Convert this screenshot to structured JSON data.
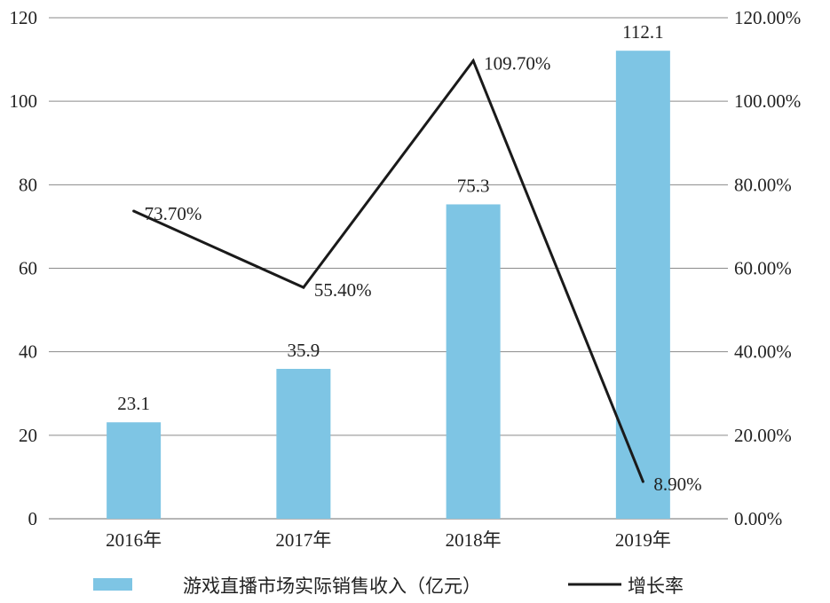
{
  "chart_data": {
    "type": "bar",
    "categories": [
      "2016年",
      "2017年",
      "2018年",
      "2019年"
    ],
    "series": [
      {
        "name": "游戏直播市场实际销售收入（亿元）",
        "type": "bar",
        "axis": "left",
        "values": [
          23.1,
          35.9,
          75.3,
          112.1
        ],
        "labels": [
          "23.1",
          "35.9",
          "75.3",
          "112.1"
        ]
      },
      {
        "name": "增长率",
        "type": "line",
        "axis": "right",
        "values": [
          73.7,
          55.4,
          109.7,
          8.9
        ],
        "labels": [
          "73.70%",
          "55.40%",
          "109.70%",
          "8.90%"
        ]
      }
    ],
    "y_left": {
      "min": 0,
      "max": 120,
      "ticks": [
        "0",
        "20",
        "40",
        "60",
        "80",
        "100",
        "120"
      ]
    },
    "y_right": {
      "min": 0,
      "max": 120,
      "ticks": [
        "0.00%",
        "20.00%",
        "40.00%",
        "60.00%",
        "80.00%",
        "100.00%",
        "120.00%"
      ]
    },
    "grid": true,
    "legend_position": "bottom",
    "colors": {
      "bar": "#7ec5e4",
      "line": "#1a1a1a",
      "grid": "#8a8a8a"
    }
  }
}
